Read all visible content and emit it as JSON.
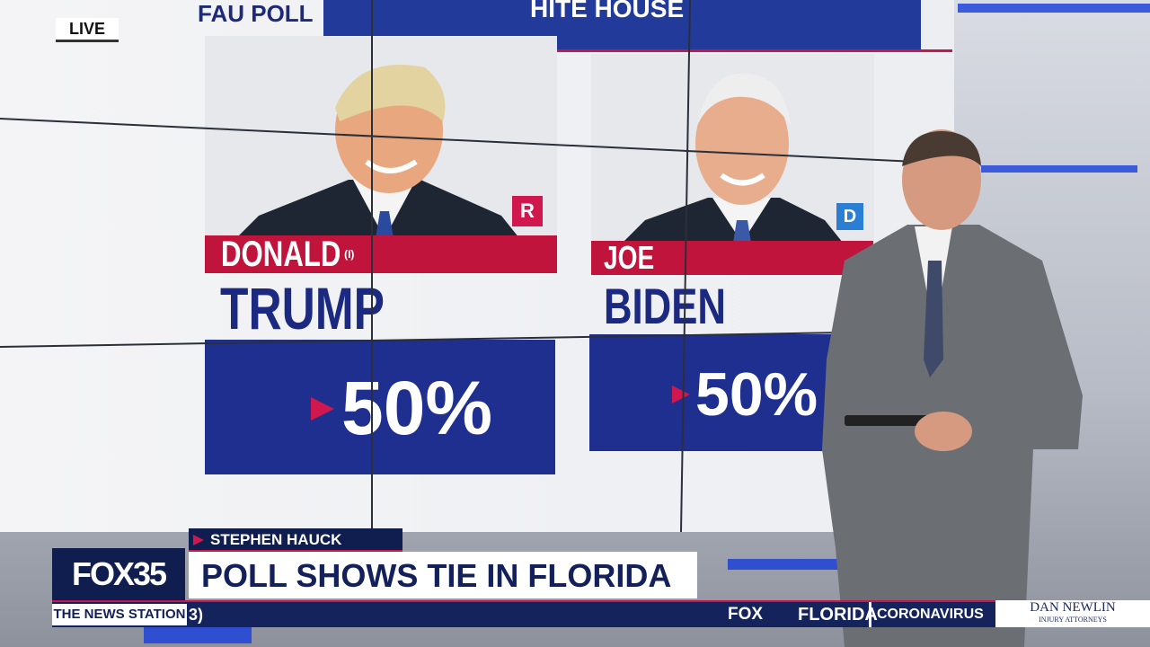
{
  "header": {
    "live": "LIVE",
    "poll_label": "FAU POLL",
    "banner": "HITE HOUSE"
  },
  "candidates": [
    {
      "first_name": "DONALD",
      "note": "(I)",
      "last_name": "TRUMP",
      "party": "R",
      "share": "50%"
    },
    {
      "first_name": "JOE",
      "last_name": "BIDEN",
      "party": "D",
      "share": "50%"
    }
  ],
  "lower_third": {
    "reporter": "STEPHEN HAUCK",
    "headline": "POLL SHOWS TIE IN FLORIDA",
    "station_logo": "FOX35",
    "station_tagline": "THE NEWS STATION"
  },
  "ticker": {
    "fragment": "3)",
    "brand": "FOX",
    "items": [
      "FLORIDA",
      "CORONAVIRUS"
    ],
    "sponsor": {
      "name": "DAN NEWLIN",
      "subtitle": "INJURY ATTORNEYS"
    }
  }
}
